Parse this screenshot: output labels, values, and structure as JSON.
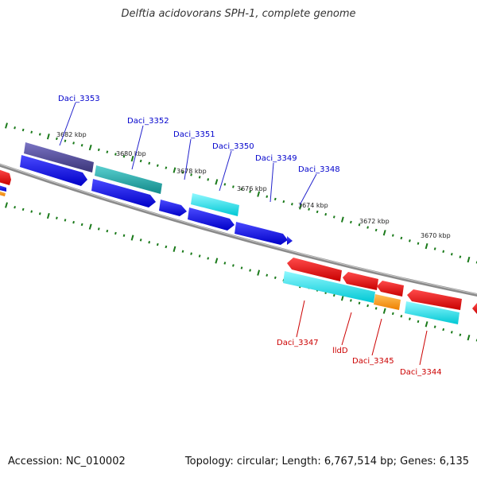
{
  "title": "Delftia acidovorans SPH-1, complete genome",
  "footer": {
    "accession": "Accession: NC_010002",
    "summary": "Topology: circular; Length: 6,767,514 bp; Genes: 6,135"
  },
  "colors": {
    "forward_cds": "#0000ee",
    "reverse_cds": "#ee0000",
    "cyan_gene": "#00e5ee",
    "teal_gene": "#1aaaaa",
    "purple_gene": "#4a4494",
    "orange_gene": "#ff9a1a",
    "backbone": "#888888",
    "ticks": "#1a7a1a",
    "forward_label": "#0000cc",
    "reverse_label": "#cc0000"
  },
  "scale_labels": [
    "3682 kbp",
    "3680 kbp",
    "3678 kbp",
    "3676 kbp",
    "3674 kbp",
    "3672 kbp",
    "3670 kbp"
  ],
  "forward_gene_labels": [
    "Daci_3353",
    "Daci_3352",
    "Daci_3351",
    "Daci_3350",
    "Daci_3349",
    "Daci_3348"
  ],
  "reverse_gene_labels": [
    "Daci_3347",
    "lldD",
    "Daci_3345",
    "Daci_3344"
  ]
}
